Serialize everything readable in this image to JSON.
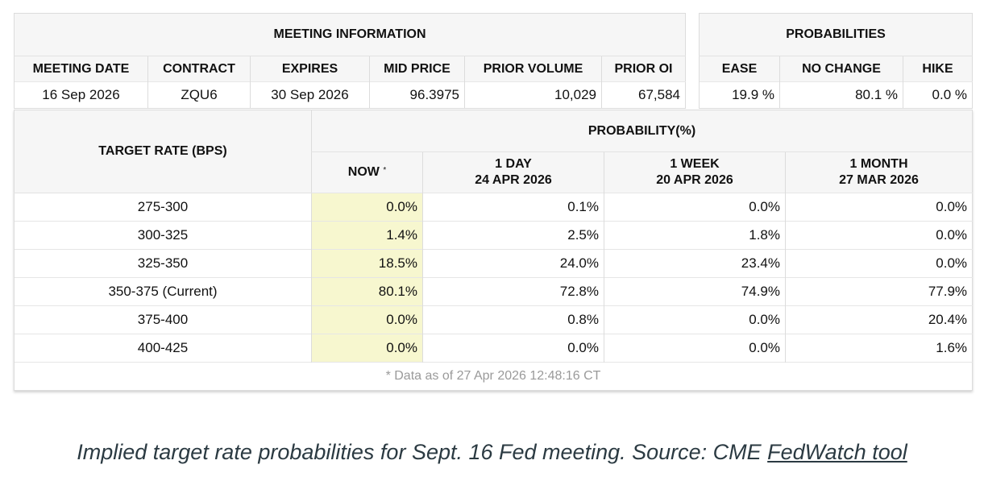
{
  "meeting": {
    "title": "MEETING INFORMATION",
    "columns": [
      "MEETING DATE",
      "CONTRACT",
      "EXPIRES",
      "MID PRICE",
      "PRIOR VOLUME",
      "PRIOR OI"
    ],
    "values": [
      "16 Sep 2026",
      "ZQU6",
      "30 Sep 2026",
      "96.3975",
      "10,029",
      "67,584"
    ]
  },
  "probabilities": {
    "title": "PROBABILITIES",
    "columns": [
      "EASE",
      "NO CHANGE",
      "HIKE"
    ],
    "values": [
      "19.9 %",
      "80.1 %",
      "0.0 %"
    ]
  },
  "rates": {
    "target_header": "TARGET RATE (BPS)",
    "prob_header": "PROBABILITY(%)",
    "now_label": "NOW",
    "now_mark": "*",
    "periods": [
      {
        "line1": "1 DAY",
        "line2": "24 APR 2026"
      },
      {
        "line1": "1 WEEK",
        "line2": "20 APR 2026"
      },
      {
        "line1": "1 MONTH",
        "line2": "27 MAR 2026"
      }
    ],
    "rows": [
      {
        "range": "275-300",
        "now": "0.0%",
        "day": "0.1%",
        "week": "0.0%",
        "month": "0.0%"
      },
      {
        "range": "300-325",
        "now": "1.4%",
        "day": "2.5%",
        "week": "1.8%",
        "month": "0.0%"
      },
      {
        "range": "325-350",
        "now": "18.5%",
        "day": "24.0%",
        "week": "23.4%",
        "month": "0.0%"
      },
      {
        "range": "350-375 (Current)",
        "now": "80.1%",
        "day": "72.8%",
        "week": "74.9%",
        "month": "77.9%"
      },
      {
        "range": "375-400",
        "now": "0.0%",
        "day": "0.8%",
        "week": "0.0%",
        "month": "20.4%"
      },
      {
        "range": "400-425",
        "now": "0.0%",
        "day": "0.0%",
        "week": "0.0%",
        "month": "1.6%"
      }
    ],
    "footnote": "* Data as of 27 Apr 2026 12:48:16 CT"
  },
  "caption": {
    "text": "Implied target rate probabilities for Sept. 16 Fed meeting. Source: CME ",
    "link": "FedWatch tool"
  },
  "colors": {
    "now_highlight": "#f7f7cf",
    "header_bg": "#f6f6f6",
    "caption": "#2b3a42"
  }
}
